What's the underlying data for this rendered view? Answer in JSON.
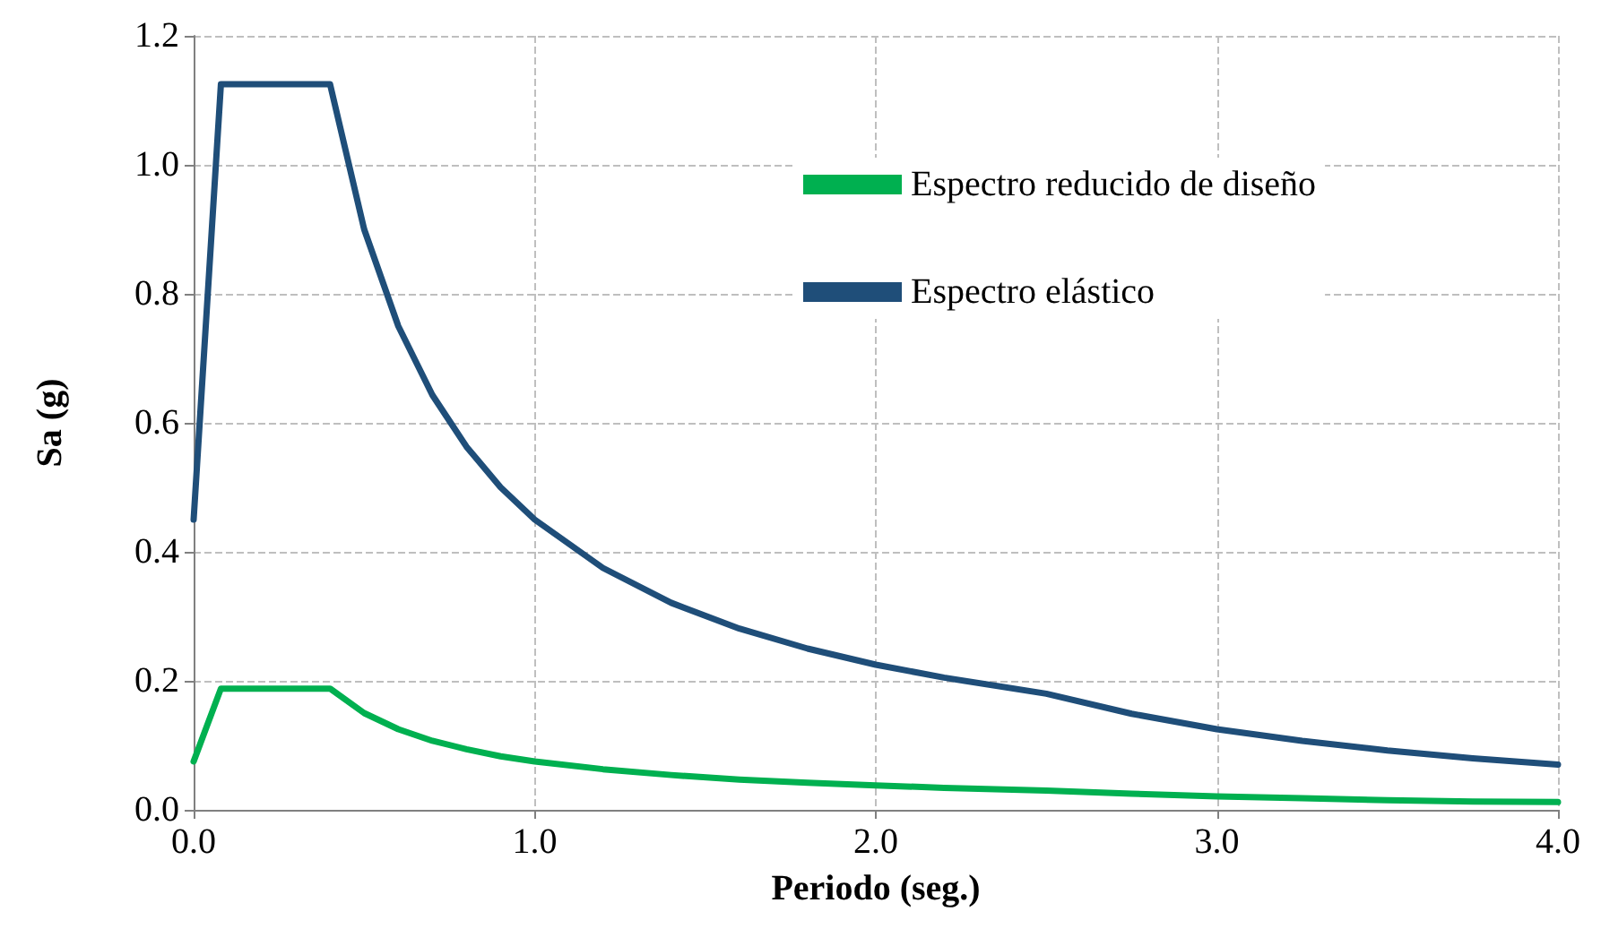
{
  "chart_data": {
    "type": "line",
    "xlabel": "Periodo (seg.)",
    "ylabel": "Sa (g)",
    "x": [
      0,
      0.08,
      0.4,
      0.5,
      0.6,
      0.7,
      0.8,
      0.9,
      1.0,
      1.2,
      1.4,
      1.6,
      1.8,
      2.0,
      2.2,
      2.5,
      2.75,
      3.0,
      3.25,
      3.5,
      3.75,
      4.0
    ],
    "series": [
      {
        "name": "Espectro reducido de diseño",
        "color": "#00b050",
        "values": [
          0.075,
          0.188,
          0.188,
          0.15,
          0.125,
          0.107,
          0.094,
          0.083,
          0.075,
          0.063,
          0.054,
          0.047,
          0.042,
          0.038,
          0.034,
          0.03,
          0.025,
          0.021,
          0.018,
          0.015,
          0.013,
          0.012
        ]
      },
      {
        "name": "Espectro elástico",
        "color": "#1f4e79",
        "values": [
          0.45,
          1.125,
          1.125,
          0.9,
          0.75,
          0.643,
          0.563,
          0.5,
          0.45,
          0.375,
          0.321,
          0.281,
          0.25,
          0.225,
          0.205,
          0.18,
          0.149,
          0.125,
          0.107,
          0.092,
          0.08,
          0.07
        ]
      }
    ],
    "xlim": [
      0,
      4
    ],
    "xticks": [
      {
        "value": 0,
        "label": "0.0"
      },
      {
        "value": 1,
        "label": "1.0"
      },
      {
        "value": 2,
        "label": "2.0"
      },
      {
        "value": 3,
        "label": "3.0"
      },
      {
        "value": 4,
        "label": "4.0"
      }
    ],
    "ylim": [
      0,
      1.2
    ],
    "yticks": [
      {
        "value": 0,
        "label": "0.0"
      },
      {
        "value": 0.2,
        "label": "0.2"
      },
      {
        "value": 0.4,
        "label": "0.4"
      },
      {
        "value": 0.6,
        "label": "0.6"
      },
      {
        "value": 0.8,
        "label": "0.8"
      },
      {
        "value": 1.0,
        "label": "1.0"
      },
      {
        "value": 1.2,
        "label": "1.2"
      }
    ],
    "grid": true,
    "legend": "top right",
    "marker": "none",
    "line_style": "solid"
  }
}
